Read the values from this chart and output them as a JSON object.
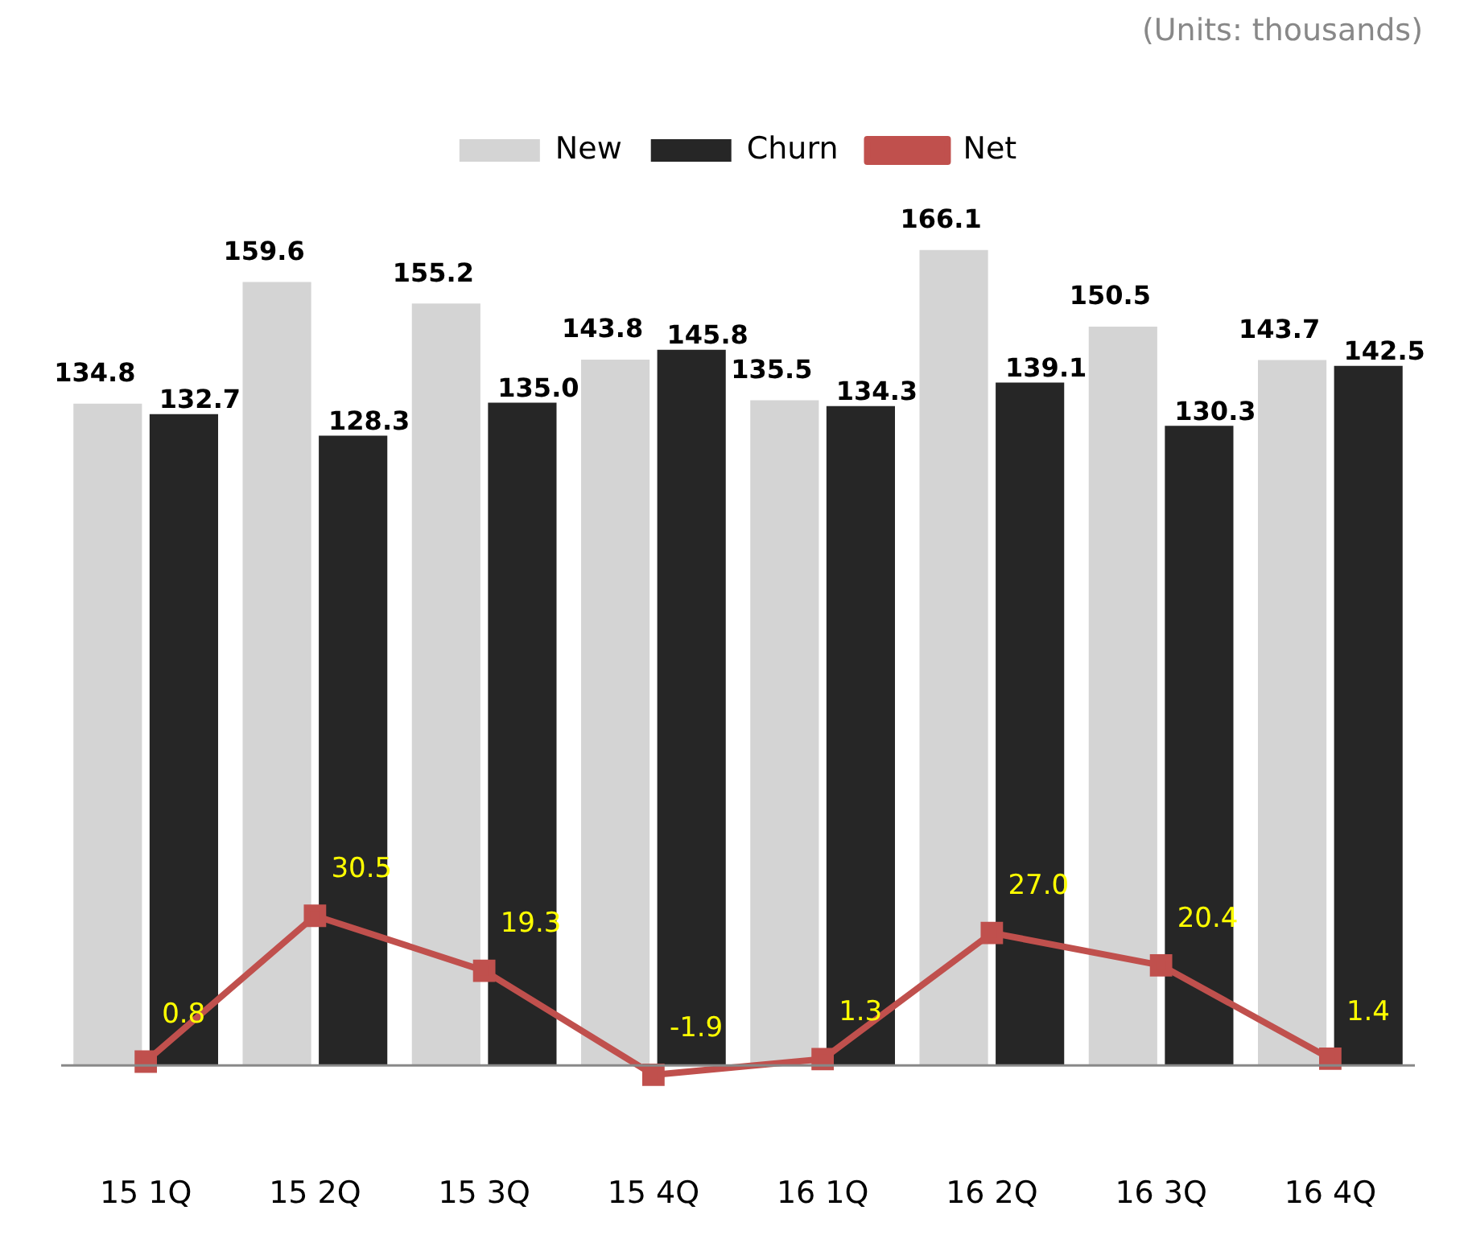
{
  "chart_data": {
    "type": "bar",
    "annotations": [
      "(Units: thousands)"
    ],
    "categories": [
      "15 1Q",
      "15 2Q",
      "15 3Q",
      "15 4Q",
      "16 1Q",
      "16 2Q",
      "16 3Q",
      "16 4Q"
    ],
    "series": [
      {
        "name": "New",
        "color": "#d4d4d4",
        "values": [
          134.8,
          159.6,
          155.2,
          143.8,
          135.5,
          166.1,
          150.5,
          143.7
        ],
        "value_labels": [
          "134.8",
          "159.6",
          "155.2",
          "143.8",
          "135.5",
          "166.1",
          "150.5",
          "143.7"
        ]
      },
      {
        "name": "Churn",
        "color": "#262626",
        "values": [
          132.7,
          128.3,
          135.0,
          145.8,
          134.3,
          139.1,
          130.3,
          142.5
        ],
        "value_labels": [
          "132.7",
          "128.3",
          "135.0",
          "145.8",
          "134.3",
          "139.1",
          "130.3",
          "142.5"
        ]
      },
      {
        "name": "Net",
        "type": "line",
        "color": "#c0504d",
        "values": [
          0.8,
          30.5,
          19.3,
          -1.9,
          1.3,
          27.0,
          20.4,
          1.4
        ],
        "value_labels": [
          "0.8",
          "30.5",
          "19.3",
          "-1.9",
          "1.3",
          "27.0",
          "20.4",
          "1.4"
        ]
      }
    ],
    "legend": "top",
    "grid": false,
    "marker": "square",
    "line_style": "solid"
  }
}
